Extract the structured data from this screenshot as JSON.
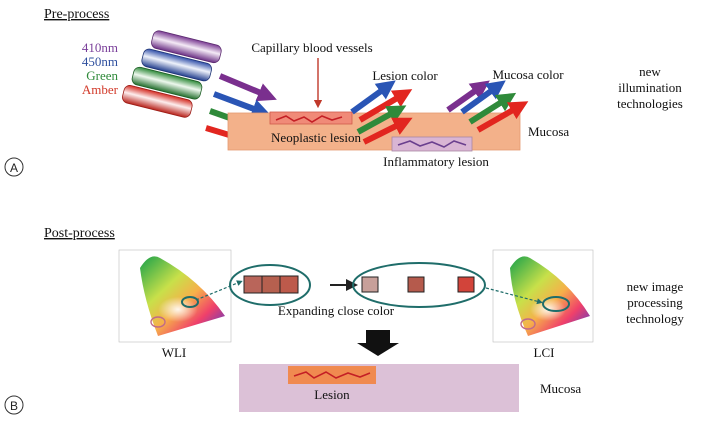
{
  "panel_a": {
    "label": "A",
    "heading": "Pre-process",
    "wavelengths": [
      {
        "text": "410nm",
        "color": "#7a3f9a"
      },
      {
        "text": "450nm",
        "color": "#2e4f9e"
      },
      {
        "text": "Green",
        "color": "#2f8a3a"
      },
      {
        "text": "Amber",
        "color": "#d23a2a"
      }
    ],
    "capillary_label": "Capillary blood vessels",
    "lesion_color_label": "Lesion color",
    "mucosa_color_label": "Mucosa color",
    "neoplastic_label": "Neoplastic lesion",
    "inflammatory_label": "Inflammatory lesion",
    "mucosa_label": "Mucosa",
    "side_note": [
      "new",
      "illumination",
      "technologies"
    ]
  },
  "panel_b": {
    "label": "B",
    "heading": "Post-process",
    "wli_label": "WLI",
    "lci_label": "LCI",
    "expanding_label": "Expanding close color",
    "lesion_label": "Lesion",
    "mucosa_label": "Mucosa",
    "side_note": [
      "new image",
      "processing",
      "technology"
    ],
    "swatch_colors_before": [
      "#b9655a",
      "#b6604f",
      "#bd5a4b"
    ],
    "swatch_colors_after": [
      "#c8a09a",
      "#b55a4c",
      "#d2443a"
    ]
  },
  "colors": {
    "violet": "#7a2f8e",
    "blue": "#2a55b5",
    "green": "#2f8a3a",
    "red": "#e2261f",
    "tissue": "#f3b18a",
    "mucosa_b": "#dcc1d7",
    "teal": "#1f6d6a"
  }
}
